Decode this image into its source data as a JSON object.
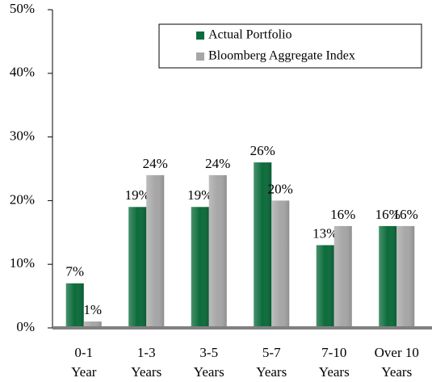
{
  "chart_data": {
    "type": "bar",
    "categories": [
      "0-1 Year",
      "1-3 Years",
      "3-5 Years",
      "5-7 Years",
      "7-10 Years",
      "Over 10 Years"
    ],
    "series": [
      {
        "name": "Actual Portfolio",
        "color": "#0b6b3a",
        "values": [
          7,
          19,
          19,
          26,
          13,
          16
        ],
        "value_labels": [
          "7%",
          "19%",
          "19%",
          "26%",
          "13%",
          "16%"
        ]
      },
      {
        "name": "Bloomberg Aggregate Index",
        "color": "#a6a6a6",
        "values": [
          1,
          24,
          24,
          20,
          16,
          16
        ],
        "value_labels": [
          "1%",
          "24%",
          "24%",
          "20%",
          "16%",
          "16%"
        ]
      }
    ],
    "ylim": [
      0,
      50
    ],
    "yticks": [
      {
        "value": 0,
        "label": "0%"
      },
      {
        "value": 10,
        "label": "10%"
      },
      {
        "value": 20,
        "label": "20%"
      },
      {
        "value": 30,
        "label": "30%"
      },
      {
        "value": 40,
        "label": "40%"
      },
      {
        "value": 50,
        "label": "50%"
      }
    ],
    "legend": "top-right"
  }
}
